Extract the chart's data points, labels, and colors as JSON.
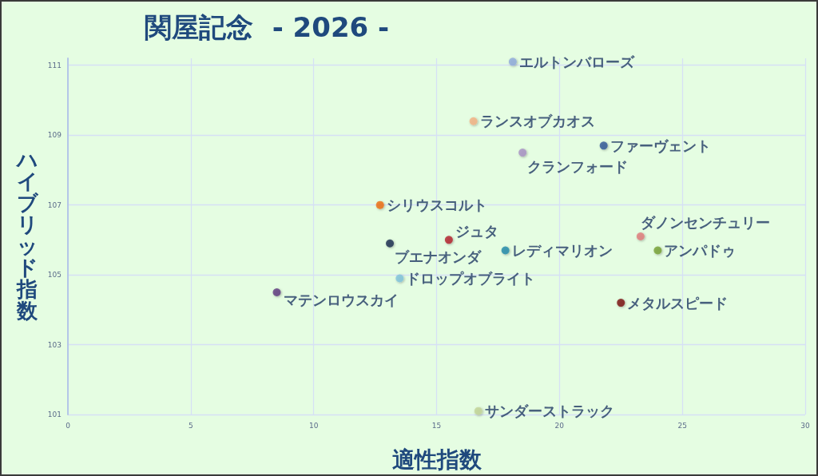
{
  "chart_data": {
    "type": "scatter",
    "title": "関屋記念  - 2026 -",
    "xlabel": "適性指数",
    "ylabel": "ハイブリッド指数",
    "xlim": [
      0,
      30
    ],
    "xticks": [
      0,
      5,
      10,
      15,
      20,
      25,
      30
    ],
    "ylim": [
      101,
      111.2
    ],
    "yticks": [
      101,
      103,
      105,
      107,
      109,
      111
    ],
    "grid": true,
    "marker": "circle",
    "series": [
      {
        "name": "エルトンバローズ",
        "color": "#8faadc",
        "x": [
          18.1
        ],
        "values": [
          111.1
        ]
      },
      {
        "name": "ランスオブカオス",
        "color": "#f4b183",
        "x": [
          16.5
        ],
        "values": [
          109.4
        ]
      },
      {
        "name": "ファーヴェント",
        "color": "#2f5597",
        "x": [
          21.8
        ],
        "values": [
          108.7
        ]
      },
      {
        "name": "クランフォード",
        "color": "#a890c4",
        "x": [
          18.5
        ],
        "values": [
          108.5
        ]
      },
      {
        "name": "シリウスコルト",
        "color": "#ee6a0c",
        "x": [
          12.7
        ],
        "values": [
          107.0
        ]
      },
      {
        "name": "ブエナオンダ",
        "color": "#1b2d4f",
        "x": [
          13.1
        ],
        "values": [
          105.9
        ]
      },
      {
        "name": "ジュタ",
        "color": "#b3202b",
        "x": [
          15.5
        ],
        "values": [
          106.0
        ]
      },
      {
        "name": "レディマリオン",
        "color": "#1f8aaa",
        "x": [
          17.8
        ],
        "values": [
          105.7
        ]
      },
      {
        "name": "ダノンセンチュリー",
        "color": "#e07a7a",
        "x": [
          23.3
        ],
        "values": [
          106.1
        ]
      },
      {
        "name": "アンパドゥ",
        "color": "#76a032",
        "x": [
          24.0
        ],
        "values": [
          105.7
        ]
      },
      {
        "name": "ドロップオブライト",
        "color": "#80c3dc",
        "x": [
          13.5
        ],
        "values": [
          104.9
        ]
      },
      {
        "name": "マテンロウスカイ",
        "color": "#5e3a7e",
        "x": [
          8.5
        ],
        "values": [
          104.5
        ]
      },
      {
        "name": "メタルスピード",
        "color": "#7a1212",
        "x": [
          22.5
        ],
        "values": [
          104.2
        ]
      },
      {
        "name": "サンダーストラック",
        "color": "#c3d597",
        "x": [
          16.7
        ],
        "values": [
          101.1
        ]
      }
    ]
  }
}
